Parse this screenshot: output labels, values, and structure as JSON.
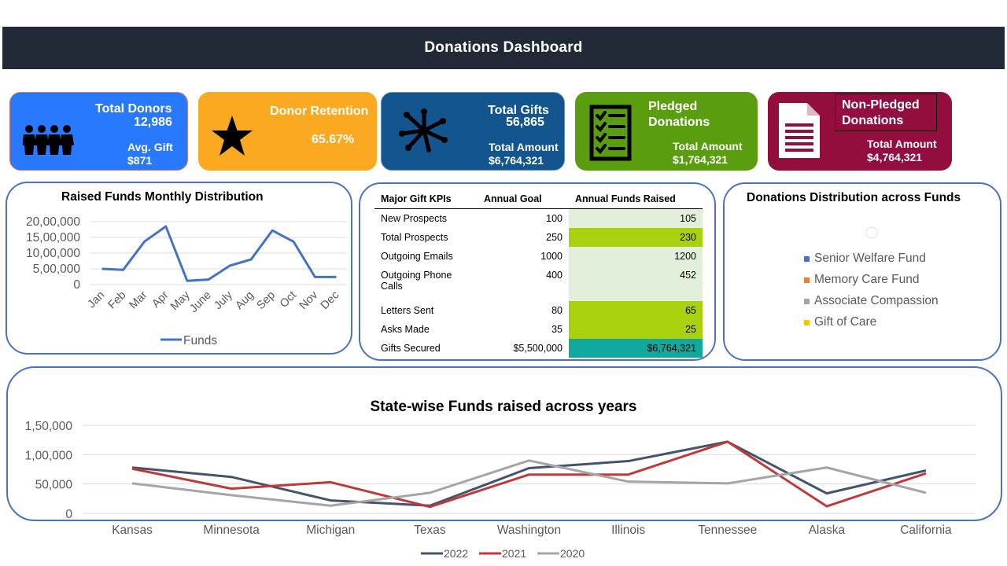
{
  "header": {
    "title": "Donations Dashboard"
  },
  "cards": {
    "total_donors": {
      "title": "Total Donors",
      "value": "12,986",
      "sub_label": "Avg. Gift",
      "sub_value": "$871",
      "color": "#2979ff"
    },
    "donor_retention": {
      "title": "Donor Retention",
      "value": "65.67%",
      "color": "#fba921"
    },
    "total_gifts": {
      "title": "Total Gifts",
      "value": "56,865",
      "sub_label": "Total Amount",
      "sub_value": "$6,764,321",
      "color": "#13568f"
    },
    "pledged": {
      "title_line1": "Pledged",
      "title_line2": "Donations",
      "sub_label": "Total Amount",
      "sub_value": "$1,764,321",
      "color": "#5a9e0f"
    },
    "non_pledged": {
      "title_line1": "Non-Pledged",
      "title_line2": "Donations",
      "sub_label": "Total Amount",
      "sub_value": "$4,764,321",
      "color": "#930d3f"
    }
  },
  "monthly_chart": {
    "title": "Raised Funds Monthly Distribution",
    "legend": "Funds",
    "y_ticks": [
      "20,00,000",
      "15,00,000",
      "10,00,000",
      "5,00,000",
      "0"
    ],
    "chart_data": {
      "type": "line",
      "categories": [
        "Jan",
        "Feb",
        "Mar",
        "Apr",
        "May",
        "June",
        "July",
        "Aug",
        "Sep",
        "Oct",
        "Nov",
        "Dec"
      ],
      "series": [
        {
          "name": "Funds",
          "values": [
            500000,
            470000,
            1370000,
            1850000,
            120000,
            160000,
            600000,
            800000,
            1720000,
            1360000,
            240000,
            240000
          ]
        }
      ],
      "ylim": [
        0,
        2000000
      ],
      "color": "#4472c4"
    }
  },
  "kpi_table": {
    "headers": [
      "Major Gift KPIs",
      "Annual Goal",
      "Annual Funds Raised"
    ],
    "rows": [
      {
        "label": "New Prospects",
        "goal": "100",
        "raised": "105",
        "bg": "#e2efda"
      },
      {
        "label": "Total Prospects",
        "goal": "250",
        "raised": "230",
        "bg": "#a9d10e"
      },
      {
        "label": "Outgoing  Emails",
        "goal": "1000",
        "raised": "1200",
        "bg": "#e2efda"
      },
      {
        "label": "Outgoing  Phone Calls",
        "goal": "400",
        "raised": "452",
        "bg": "#e2efda"
      },
      {
        "label": "Letters Sent",
        "goal": "80",
        "raised": "65",
        "bg": "#a9d10e"
      },
      {
        "label": "Asks Made",
        "goal": "35",
        "raised": "25",
        "bg": "#a9d10e"
      },
      {
        "label": "Gifts Secured",
        "goal": "$5,500,000",
        "raised": "$6,764,321",
        "bg": "#11a99e"
      }
    ]
  },
  "distribution": {
    "title": "Donations Distribution across Funds",
    "legend": [
      {
        "name": "Senior Welfare Fund",
        "color": "#4472c4"
      },
      {
        "name": "Memory Care Fund",
        "color": "#ed7d31"
      },
      {
        "name": "Associate Compassion",
        "color": "#a5a5a5"
      },
      {
        "name": "Gift of Care",
        "color": "#ffc000"
      }
    ]
  },
  "state_chart": {
    "title": "State-wise Funds raised across years",
    "y_ticks": [
      "1,50,000",
      "1,00,000",
      "50,000",
      "0"
    ],
    "chart_data": {
      "type": "line",
      "categories": [
        "Kansas",
        "Minnesota",
        "Michigan",
        "Texas",
        "Washington",
        "Illinois",
        "Tennessee",
        "Alaska",
        "California"
      ],
      "ylim": [
        0,
        150000
      ],
      "series": [
        {
          "name": "2022",
          "color": "#44546a",
          "values": [
            78000,
            62000,
            22000,
            13000,
            77000,
            89000,
            122000,
            34000,
            73000
          ]
        },
        {
          "name": "2021",
          "color": "#be3a3a",
          "values": [
            76000,
            42000,
            53000,
            11000,
            66000,
            66000,
            122000,
            12000,
            68000
          ]
        },
        {
          "name": "2020",
          "color": "#a5a5a5",
          "values": [
            51000,
            31000,
            13000,
            35000,
            90000,
            54000,
            51000,
            78000,
            35000
          ]
        }
      ]
    }
  }
}
